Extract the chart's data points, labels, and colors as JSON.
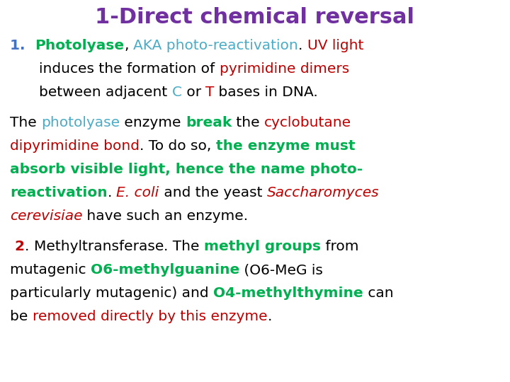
{
  "title": "1-Direct chemical reversal",
  "title_color": "#7030A0",
  "title_fontsize": 22,
  "bg_color": "#FFFFFF",
  "body_fontsize": 14.5,
  "figsize": [
    7.2,
    5.4
  ],
  "dpi": 100,
  "BLACK": "#000000",
  "PURPLE": "#7030A0",
  "TEAL": "#4BACC6",
  "RED": "#C00000",
  "GREEN": "#00B050",
  "BLUE_NUM": "#4472C4",
  "DARKRED": "#C00000"
}
